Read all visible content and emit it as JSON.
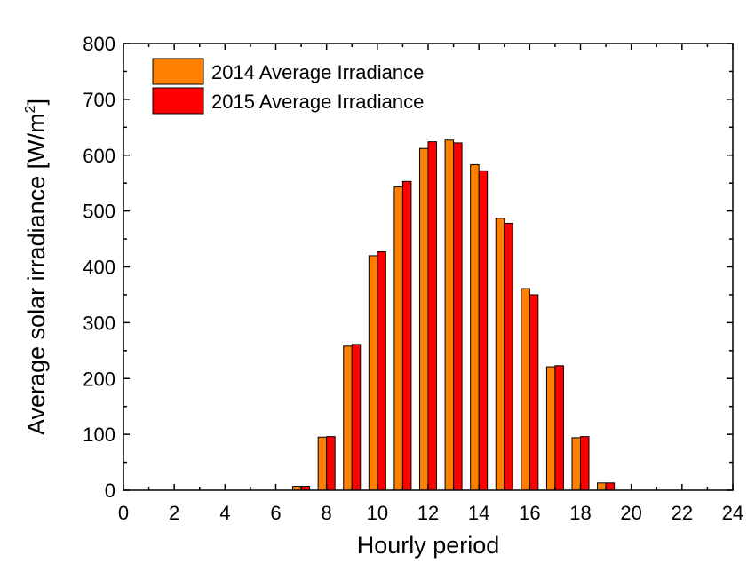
{
  "chart_data": {
    "type": "bar",
    "xlabel": "Hourly period",
    "ylabel": "Average solar irradiance [W/m",
    "ylabel_superscript": "2",
    "ylabel_close": "]",
    "xlim": [
      0,
      24
    ],
    "ylim": [
      0,
      800
    ],
    "x_ticks": [
      0,
      2,
      4,
      6,
      8,
      10,
      12,
      14,
      16,
      18,
      20,
      22,
      24
    ],
    "y_ticks": [
      0,
      100,
      200,
      300,
      400,
      500,
      600,
      700,
      800
    ],
    "grid": false,
    "legend_position": "top-left",
    "x": [
      7,
      8,
      9,
      10,
      11,
      12,
      13,
      14,
      15,
      16,
      17,
      18,
      19
    ],
    "series": [
      {
        "name": "2014 Average Irradiance",
        "color": "#ff8000",
        "values": [
          7,
          95,
          258,
          420,
          543,
          612,
          627,
          583,
          487,
          361,
          221,
          94,
          13
        ]
      },
      {
        "name": "2015 Average Irradiance",
        "color": "#ff0000",
        "values": [
          7,
          96,
          261,
          427,
          553,
          624,
          622,
          572,
          478,
          350,
          223,
          96,
          13
        ]
      }
    ]
  }
}
